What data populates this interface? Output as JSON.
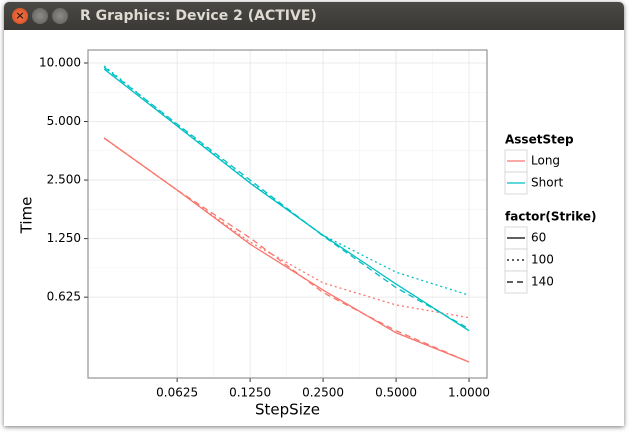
{
  "window": {
    "title": "R Graphics: Device 2 (ACTIVE)"
  },
  "chart_data": {
    "type": "line",
    "xlabel": "StepSize",
    "ylabel": "Time",
    "xscale": "log",
    "yscale": "log",
    "x": [
      0.03125,
      0.0625,
      0.125,
      0.25,
      0.5,
      1.0
    ],
    "xlim": [
      0.0268,
      1.186
    ],
    "ylim": [
      0.24,
      11.66
    ],
    "xticks": [
      0.0625,
      {
        "value": 0.125,
        "label": "0.1250"
      },
      {
        "value": 0.25,
        "label": "0.2500"
      },
      {
        "value": 0.5,
        "label": "0.5000"
      },
      {
        "value": 1,
        "label": "1.0000"
      }
    ],
    "yticks": [
      {
        "value": 0.625,
        "label": "0.625"
      },
      {
        "value": 1.25,
        "label": "1.250"
      },
      {
        "value": 2.5,
        "label": "2.500"
      },
      {
        "value": 5,
        "label": "5.000"
      },
      {
        "value": 10,
        "label": "10.000"
      }
    ],
    "grid": true,
    "legends": [
      {
        "title": "AssetStep",
        "items": [
          {
            "label": "Long",
            "color": "#F8766D"
          },
          {
            "label": "Short",
            "color": "#00BFC4"
          }
        ]
      },
      {
        "title": "factor(Strike)",
        "items": [
          {
            "label": "60",
            "linetype": "solid"
          },
          {
            "label": "100",
            "linetype": "dotted"
          },
          {
            "label": "140",
            "linetype": "dashed"
          }
        ]
      }
    ],
    "series": [
      {
        "color": "#F8766D",
        "linetype": "solid",
        "values": [
          4.11,
          2.22,
          1.17,
          0.68,
          0.41,
          0.29
        ]
      },
      {
        "color": "#F8766D",
        "linetype": "dotted",
        "values": [
          4.11,
          2.22,
          1.2,
          0.74,
          0.57,
          0.49
        ]
      },
      {
        "color": "#F8766D",
        "linetype": "dashed",
        "values": [
          4.11,
          2.22,
          1.26,
          0.66,
          0.42,
          0.29
        ]
      },
      {
        "color": "#00BFC4",
        "linetype": "solid",
        "values": [
          9.3,
          4.74,
          2.41,
          1.3,
          0.73,
          0.42
        ]
      },
      {
        "color": "#00BFC4",
        "linetype": "dotted",
        "values": [
          9.65,
          4.8,
          2.43,
          1.3,
          0.84,
          0.64
        ]
      },
      {
        "color": "#00BFC4",
        "linetype": "dashed",
        "values": [
          9.5,
          4.85,
          2.5,
          1.29,
          0.7,
          0.43
        ]
      }
    ]
  }
}
